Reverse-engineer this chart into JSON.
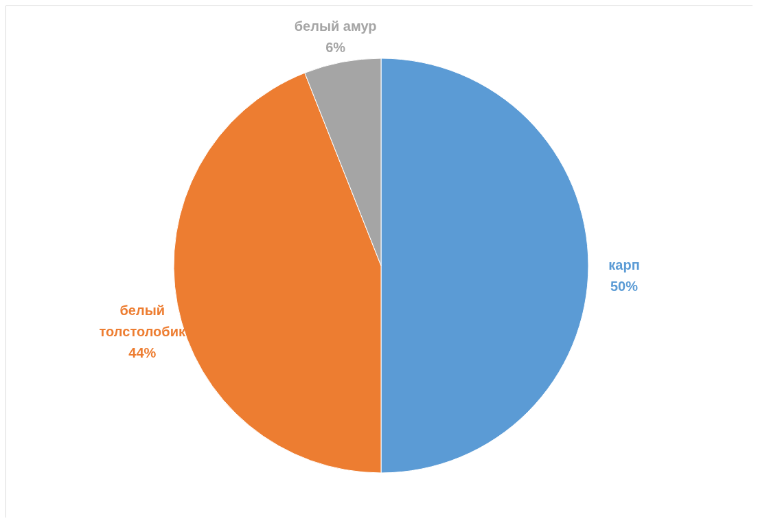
{
  "chart_data": {
    "type": "pie",
    "categories": [
      "карп",
      "белый толстолобик",
      "белый амур"
    ],
    "values": [
      50,
      44,
      6
    ],
    "colors": [
      "#5b9bd5",
      "#ed7d31",
      "#a5a5a5"
    ],
    "value_labels": [
      "50%",
      "44%",
      "6%"
    ]
  }
}
